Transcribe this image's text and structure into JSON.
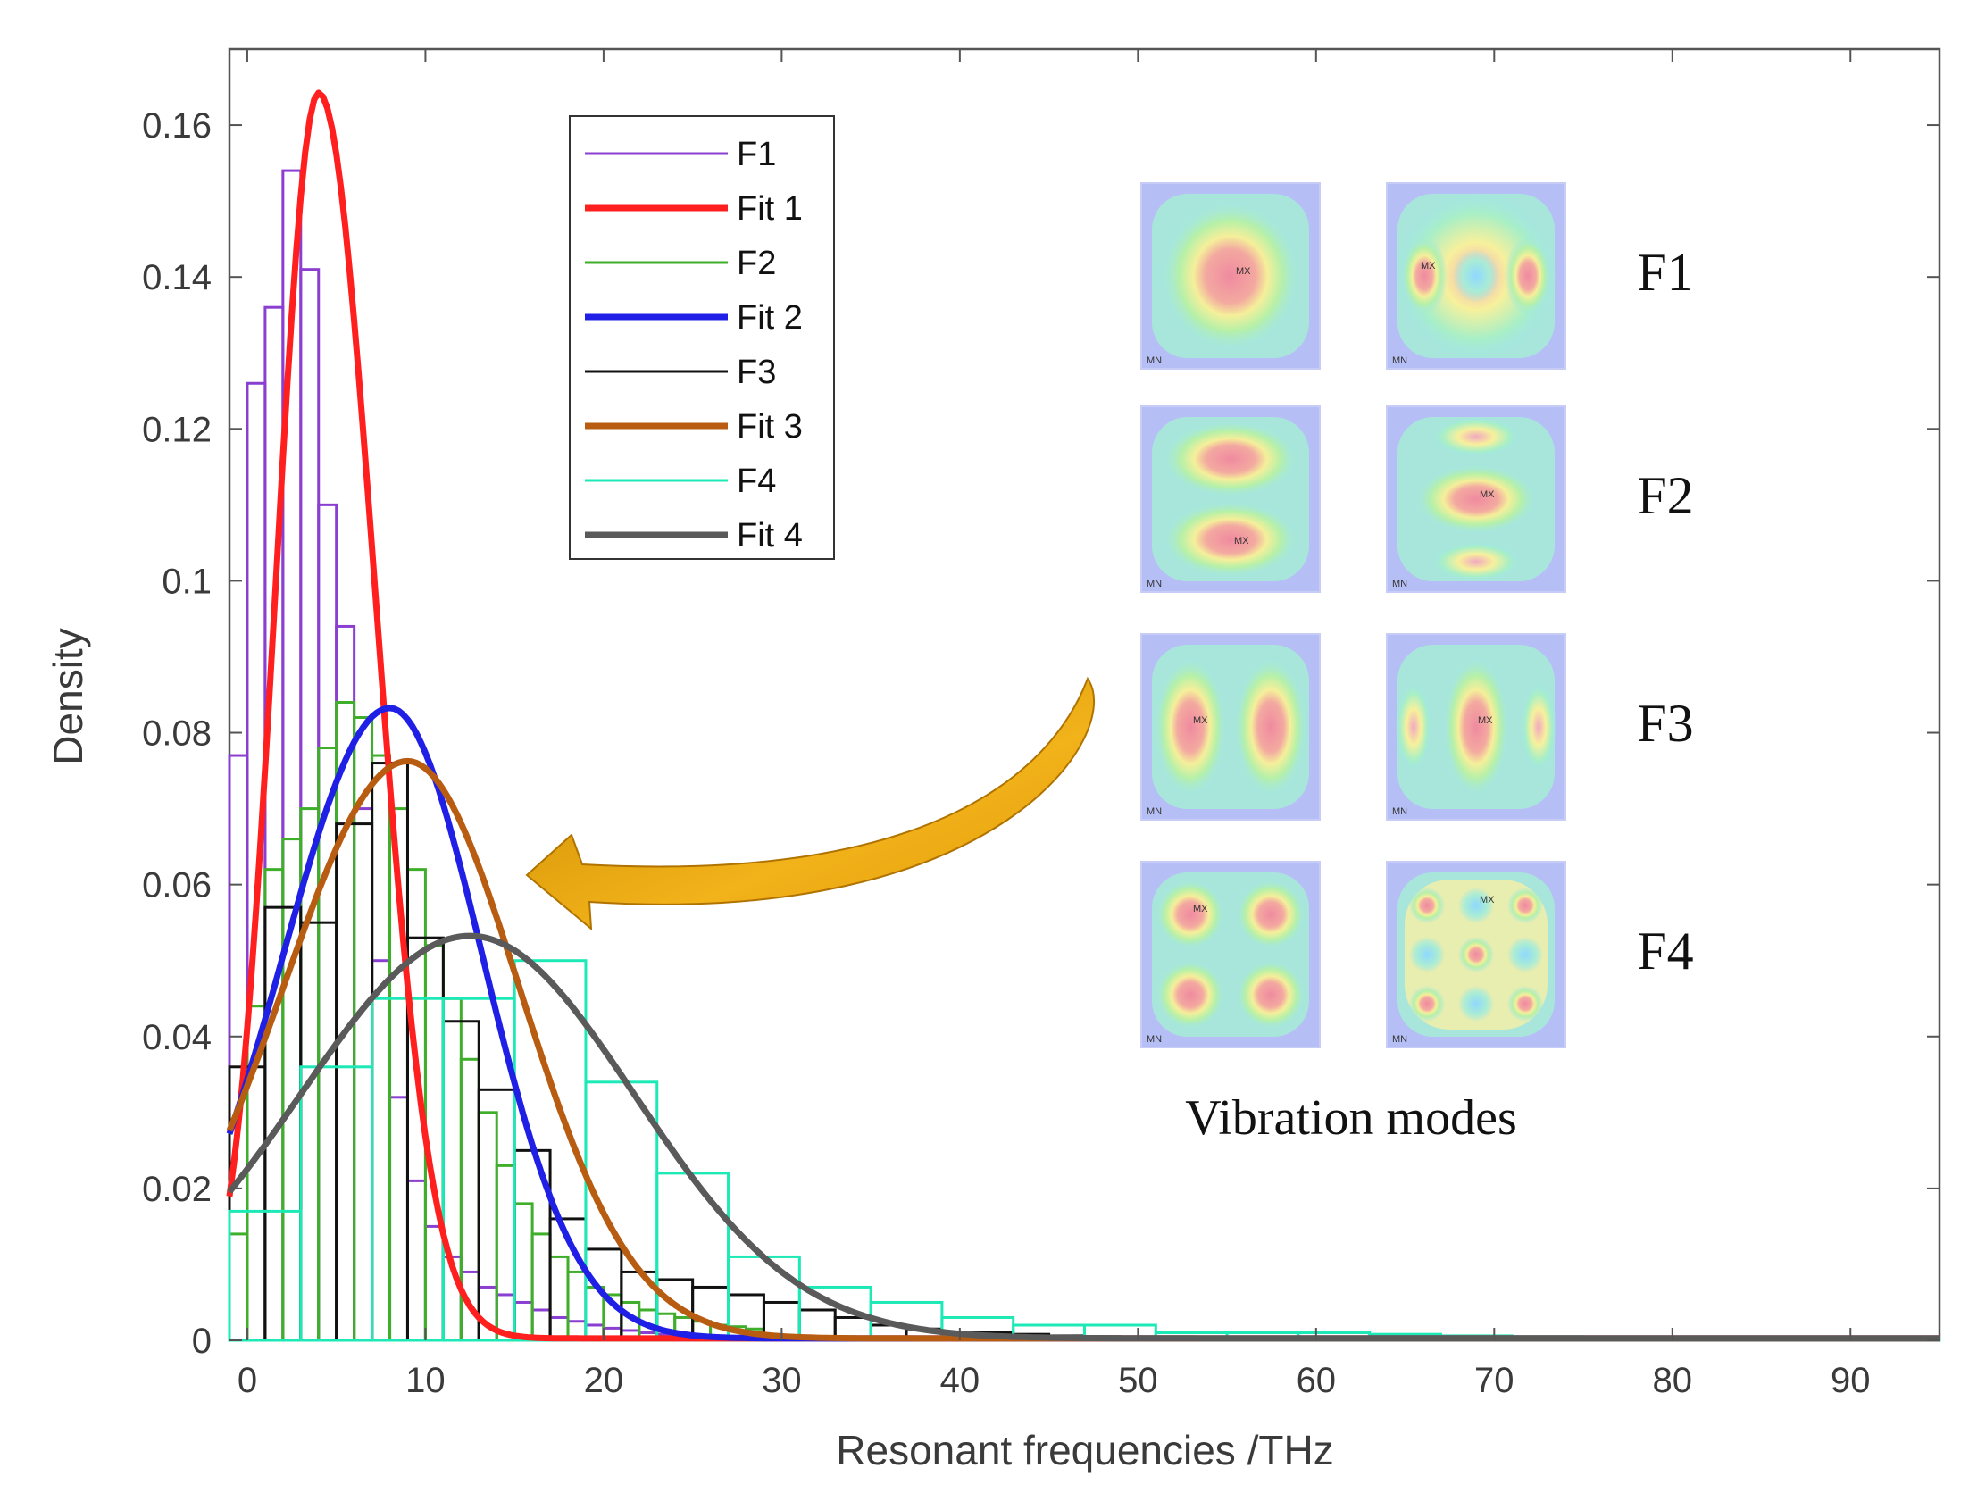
{
  "chart_data": {
    "type": "bar",
    "xlabel": "Resonant frequencies /THz",
    "ylabel": "Density",
    "xlim": [
      -1,
      95
    ],
    "ylim": [
      0,
      0.17
    ],
    "xticks": [
      0,
      10,
      20,
      30,
      40,
      50,
      60,
      70,
      80,
      90
    ],
    "yticks": [
      0,
      0.02,
      0.04,
      0.06,
      0.08,
      0.1,
      0.12,
      0.14,
      0.16
    ],
    "ytick_labels": [
      "0",
      "0.02",
      "0.04",
      "0.06",
      "0.08",
      "0.1",
      "0.12",
      "0.14",
      "0.16"
    ],
    "grid": false,
    "legend_position": "top-center",
    "histograms": [
      {
        "name": "F1",
        "color": "#8a3fd1",
        "bin_start": -1,
        "bin_width": 1,
        "values": [
          0.077,
          0.126,
          0.136,
          0.154,
          0.141,
          0.11,
          0.094,
          0.07,
          0.05,
          0.032,
          0.021,
          0.015,
          0.011,
          0.009,
          0.007,
          0.006,
          0.005,
          0.004,
          0.003,
          0.0025,
          0.002,
          0.0016,
          0.0013,
          0.001,
          0.0008
        ]
      },
      {
        "name": "F2",
        "color": "#3fae2a",
        "bin_start": -1,
        "bin_width": 1,
        "values": [
          0.014,
          0.044,
          0.062,
          0.066,
          0.07,
          0.078,
          0.084,
          0.082,
          0.077,
          0.07,
          0.062,
          0.052,
          0.045,
          0.037,
          0.03,
          0.023,
          0.018,
          0.014,
          0.011,
          0.009,
          0.007,
          0.006,
          0.005,
          0.004,
          0.0035,
          0.003,
          0.0025,
          0.002,
          0.0018,
          0.0015
        ]
      },
      {
        "name": "F3",
        "color": "#111111",
        "bin_start": -1,
        "bin_width": 2,
        "values": [
          0.036,
          0.057,
          0.055,
          0.068,
          0.076,
          0.053,
          0.042,
          0.033,
          0.025,
          0.016,
          0.012,
          0.009,
          0.008,
          0.007,
          0.006,
          0.005,
          0.004,
          0.003,
          0.002,
          0.0015,
          0.001,
          0.001,
          0.0008,
          0.0006,
          0.0005,
          0.0004,
          0.0003,
          0.0003,
          0.0002,
          0.0002,
          0.0001,
          0.0001,
          0.0001,
          0.0001,
          0.0001
        ]
      },
      {
        "name": "F4",
        "color": "#1de9b6",
        "bin_start": -1,
        "bin_width": 4,
        "values": [
          0.017,
          0.036,
          0.045,
          0.045,
          0.05,
          0.034,
          0.022,
          0.011,
          0.007,
          0.005,
          0.003,
          0.002,
          0.002,
          0.001,
          0.001,
          0.001,
          0.0008,
          0.0006,
          0.0005,
          0.0003,
          0.0002,
          0.0002,
          0.0001,
          0.0001
        ]
      }
    ],
    "fits": [
      {
        "name": "Fit 1",
        "color": "#ff1f1f",
        "peak_x": 4,
        "peak_y": 0.164,
        "sigma_left": 2.4,
        "sigma_right": 2.9
      },
      {
        "name": "Fit 2",
        "color": "#1f1fe6",
        "peak_x": 8,
        "peak_y": 0.083,
        "sigma_left": 6.0,
        "sigma_right": 4.8
      },
      {
        "name": "Fit 3",
        "color": "#b85c12",
        "peak_x": 9,
        "peak_y": 0.076,
        "sigma_left": 7.0,
        "sigma_right": 5.8
      },
      {
        "name": "Fit 4",
        "color": "#5a5a5a",
        "peak_x": 12.5,
        "peak_y": 0.053,
        "sigma_left": 9.5,
        "sigma_right": 8.5
      }
    ],
    "legend": [
      {
        "label": "F1",
        "color": "#8a3fd1",
        "thick": false
      },
      {
        "label": "Fit 1",
        "color": "#ff1f1f",
        "thick": true
      },
      {
        "label": "F2",
        "color": "#3fae2a",
        "thick": false
      },
      {
        "label": "Fit 2",
        "color": "#1f1fe6",
        "thick": true
      },
      {
        "label": "F3",
        "color": "#111111",
        "thick": false
      },
      {
        "label": "Fit 3",
        "color": "#b85c12",
        "thick": true
      },
      {
        "label": "F4",
        "color": "#1de9b6",
        "thick": false
      },
      {
        "label": "Fit 4",
        "color": "#5a5a5a",
        "thick": true
      }
    ],
    "inset": {
      "title": "Vibration modes",
      "rows": [
        {
          "label": "F1"
        },
        {
          "label": "F2"
        },
        {
          "label": "F3"
        },
        {
          "label": "F4"
        }
      ]
    }
  }
}
